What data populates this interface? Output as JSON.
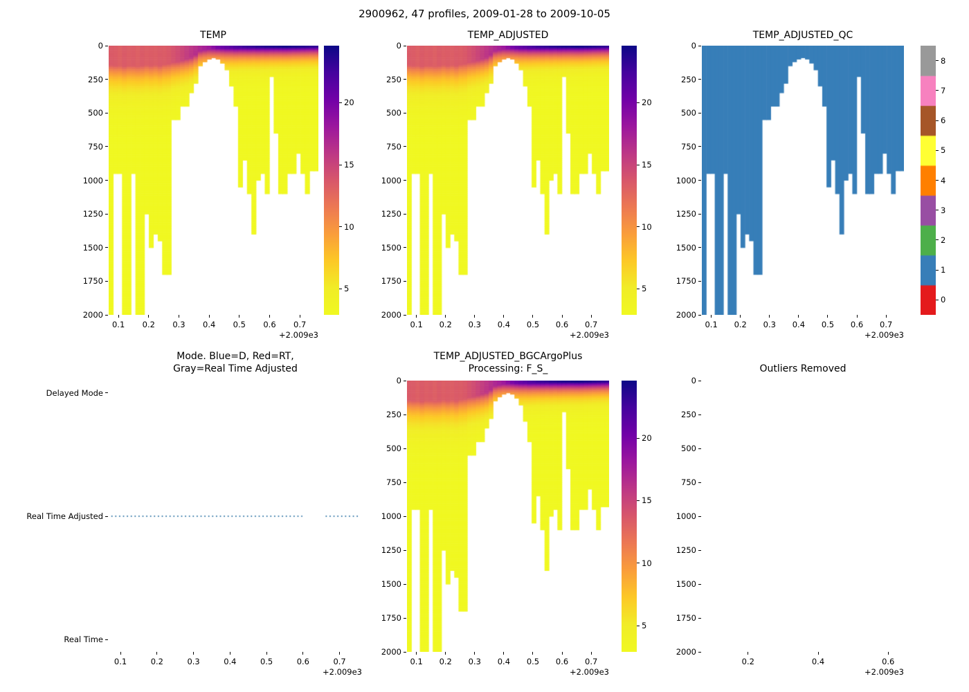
{
  "figure": {
    "suptitle": "2900962, 47 profiles, 2009-01-28 to 2009-10-05"
  },
  "axis_offset_label": "+2.009e3",
  "colors": {
    "plasma_stops": [
      "#0d0887",
      "#46039f",
      "#7201a8",
      "#9c179e",
      "#bd3786",
      "#d8576b",
      "#ed7953",
      "#fa9e3b",
      "#fdc926",
      "#f1ed27",
      "#f0f921"
    ],
    "qc_palette": [
      "#e41a1c",
      "#377eb8",
      "#4daf4a",
      "#984ea3",
      "#ff7f00",
      "#ffff33",
      "#a65628",
      "#f781bf",
      "#999999"
    ],
    "qc_fill": "#377eb8",
    "mode_dot": "#3579a8",
    "axis": "#000000"
  },
  "chart_data": [
    {
      "id": "temp",
      "type": "heatmap",
      "title": "TEMP",
      "xlim": [
        0.0676,
        0.7614
      ],
      "ylim": [
        2000,
        0
      ],
      "xticks": [
        0.1,
        0.2,
        0.3,
        0.4,
        0.5,
        0.6,
        0.7
      ],
      "yticks": [
        0,
        250,
        500,
        750,
        1000,
        1250,
        1500,
        1750,
        2000
      ],
      "colorbar": {
        "cmap": "plasma_r",
        "vmin": 2.9,
        "vmax": 24.6,
        "ticks": [
          5,
          10,
          15,
          20
        ]
      }
    },
    {
      "id": "temp_adjusted",
      "type": "heatmap",
      "title": "TEMP_ADJUSTED",
      "xlim": [
        0.0676,
        0.7614
      ],
      "ylim": [
        2000,
        0
      ],
      "xticks": [
        0.1,
        0.2,
        0.3,
        0.4,
        0.5,
        0.6,
        0.7
      ],
      "yticks": [
        0,
        250,
        500,
        750,
        1000,
        1250,
        1500,
        1750,
        2000
      ],
      "colorbar": {
        "cmap": "plasma_r",
        "vmin": 2.9,
        "vmax": 24.6,
        "ticks": [
          5,
          10,
          15,
          20
        ]
      }
    },
    {
      "id": "temp_adjusted_qc",
      "type": "heatmap",
      "title": "TEMP_ADJUSTED_QC",
      "qc_value": 1,
      "xlim": [
        0.0676,
        0.7614
      ],
      "ylim": [
        2000,
        0
      ],
      "xticks": [
        0.1,
        0.2,
        0.3,
        0.4,
        0.5,
        0.6,
        0.7
      ],
      "yticks": [
        0,
        250,
        500,
        750,
        1000,
        1250,
        1500,
        1750,
        2000
      ],
      "colorbar": {
        "cmap": "Set1",
        "vmin": 0,
        "vmax": 8,
        "ticks": [
          0,
          1,
          2,
          3,
          4,
          5,
          6,
          7,
          8
        ]
      }
    },
    {
      "id": "mode",
      "type": "scatter",
      "title_lines": [
        "Mode. Blue=D, Red=RT,",
        "Gray=Real Time Adjusted"
      ],
      "ycategories": [
        "Delayed Mode",
        "Real Time Adjusted",
        "Real Time"
      ],
      "mode_value": "Real Time Adjusted",
      "segments": [
        [
          0.075,
          0.598
        ],
        [
          0.662,
          0.754
        ]
      ],
      "xlim": [
        0.0676,
        0.7614
      ],
      "xticks": [
        0.1,
        0.2,
        0.3,
        0.4,
        0.5,
        0.6,
        0.7
      ]
    },
    {
      "id": "temp_adjusted_bgcargoplus",
      "type": "heatmap",
      "title_lines": [
        "TEMP_ADJUSTED_BGCArgoPlus",
        "Processing: F_S_"
      ],
      "xlim": [
        0.0676,
        0.7614
      ],
      "ylim": [
        2000,
        0
      ],
      "xticks": [
        0.1,
        0.2,
        0.3,
        0.4,
        0.5,
        0.6,
        0.7
      ],
      "yticks": [
        0,
        250,
        500,
        750,
        1000,
        1250,
        1500,
        1750,
        2000
      ],
      "colorbar": {
        "cmap": "plasma_r",
        "vmin": 2.9,
        "vmax": 24.6,
        "ticks": [
          5,
          10,
          15,
          20
        ]
      }
    },
    {
      "id": "outliers_removed",
      "type": "empty",
      "title": "Outliers Removed",
      "xlim": [
        0.068,
        0.645
      ],
      "ylim": [
        2000,
        0
      ],
      "xticks": [
        0.2,
        0.4,
        0.6
      ],
      "yticks": [
        0,
        250,
        500,
        750,
        1000,
        1250,
        1500,
        1750,
        2000
      ]
    }
  ],
  "profiles": {
    "count": 47,
    "spacing": 0.01476,
    "deep_temp": 3.0,
    "qc_flag": 1,
    "x": [
      0.075,
      0.0898,
      0.1045,
      0.1193,
      0.134,
      0.1488,
      0.1636,
      0.1783,
      0.1931,
      0.2078,
      0.2226,
      0.2374,
      0.2521,
      0.2669,
      0.2816,
      0.2964,
      0.3112,
      0.3259,
      0.3407,
      0.3554,
      0.3702,
      0.385,
      0.3997,
      0.4145,
      0.4292,
      0.444,
      0.4588,
      0.4735,
      0.4883,
      0.503,
      0.5178,
      0.5326,
      0.5473,
      0.5621,
      0.5768,
      0.5916,
      0.6064,
      0.6211,
      0.6359,
      0.6506,
      0.6654,
      0.6802,
      0.6949,
      0.7097,
      0.7244,
      0.7392,
      0.754
    ],
    "max_depth": [
      2000,
      950,
      950,
      2000,
      2000,
      950,
      2000,
      2000,
      1250,
      1500,
      1400,
      1450,
      1700,
      1700,
      550,
      550,
      450,
      450,
      350,
      280,
      150,
      120,
      100,
      90,
      100,
      130,
      180,
      300,
      450,
      1050,
      850,
      1100,
      1400,
      1000,
      950,
      1100,
      230,
      650,
      1100,
      1100,
      950,
      950,
      800,
      950,
      1100,
      930,
      930
    ],
    "surface_temp": [
      13.5,
      13.4,
      13.2,
      13.5,
      13.3,
      13.4,
      13.2,
      13.5,
      13.3,
      13.4,
      13.3,
      13.5,
      13.4,
      13.6,
      14.0,
      14.4,
      14.9,
      15.4,
      15.9,
      16.4,
      17.0,
      17.5,
      18.0,
      19.0,
      20.0,
      20.6,
      21.0,
      21.5,
      22.0,
      22.4,
      22.8,
      23.0,
      23.2,
      23.5,
      23.6,
      23.8,
      24.0,
      24.0,
      24.2,
      24.3,
      24.2,
      24.0,
      23.9,
      23.7,
      23.5,
      23.3,
      23.2
    ],
    "mixed_layer_depth": [
      145,
      150,
      150,
      155,
      150,
      150,
      155,
      150,
      145,
      150,
      145,
      150,
      140,
      135,
      125,
      120,
      110,
      100,
      90,
      70,
      40,
      32,
      26,
      22,
      20,
      20,
      20,
      18,
      18,
      16,
      15,
      15,
      14,
      14,
      13,
      13,
      12,
      12,
      12,
      12,
      12,
      12,
      12,
      12,
      12,
      12,
      12
    ],
    "decay_scale": [
      130,
      130,
      130,
      130,
      130,
      130,
      130,
      130,
      130,
      130,
      130,
      130,
      130,
      130,
      120,
      115,
      112,
      110,
      105,
      100,
      92,
      90,
      88,
      86,
      82,
      80,
      80,
      79,
      78,
      77,
      76,
      76,
      75,
      75,
      74,
      74,
      73,
      73,
      72,
      72,
      72,
      71,
      71,
      70,
      70,
      70,
      70
    ]
  }
}
